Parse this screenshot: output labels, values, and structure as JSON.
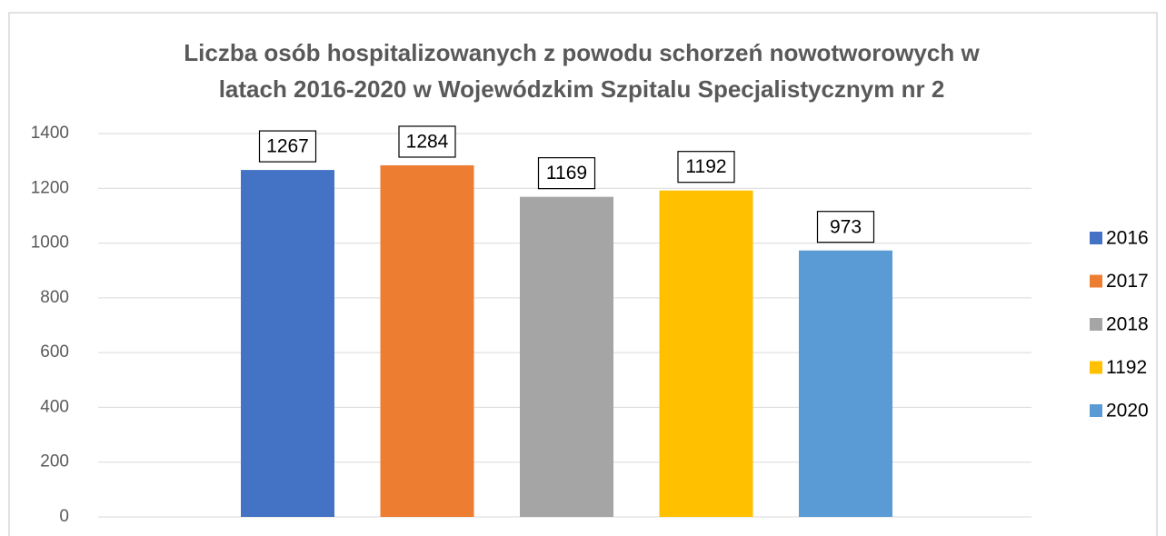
{
  "chart_data": {
    "type": "bar",
    "title": [
      "Liczba osób hospitalizowanych z powodu schorzeń nowotworowych w",
      "latach 2016-2020 w Wojewódzkim Szpitalu Specjalistycznym nr 2"
    ],
    "series": [
      {
        "name": "2016",
        "color": "#4472c4",
        "values": [
          1267
        ]
      },
      {
        "name": "2017",
        "color": "#ed7d31",
        "values": [
          1284
        ]
      },
      {
        "name": "2018",
        "color": "#a5a5a5",
        "values": [
          1169
        ]
      },
      {
        "name": "1192",
        "color": "#ffc000",
        "values": [
          1192
        ]
      },
      {
        "name": "2020",
        "color": "#5b9bd5",
        "values": [
          973
        ]
      }
    ],
    "ylim": [
      0,
      1400
    ],
    "yticks": [
      0,
      200,
      400,
      600,
      800,
      1000,
      1200,
      1400
    ],
    "grid": true,
    "legend": "right"
  }
}
